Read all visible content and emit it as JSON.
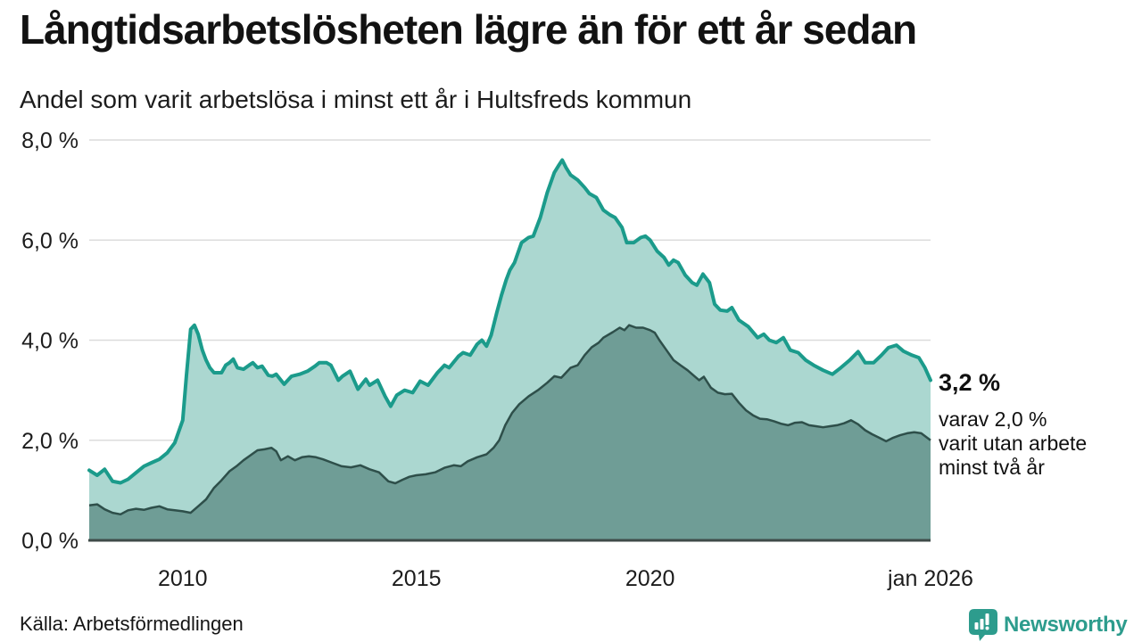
{
  "header": {
    "title": "Långtidsarbetslösheten lägre än för ett år sedan",
    "subtitle": "Andel som varit arbetslösa i minst ett år i Hultsfreds kommun"
  },
  "annotation": {
    "value": "3,2 %",
    "line1": "varav 2,0 %",
    "line2": "varit utan arbete",
    "line3": "minst två år"
  },
  "footer": {
    "source": "Källa: Arbetsförmedlingen",
    "brand": "Newsworthy"
  },
  "colors": {
    "total_line": "#1b9b8b",
    "total_fill": "#abd7d0",
    "two_line": "#2e4f4a",
    "two_fill": "#6f9d96",
    "grid": "#dcdcdc",
    "axis": "#3f4b49",
    "brand": "#2d9c8d"
  },
  "chart_data": {
    "type": "area",
    "title": "Långtidsarbetslösheten lägre än för ett år sedan",
    "subtitle": "Andel som varit arbetslösa i minst ett år i Hultsfreds kommun",
    "xlabel": "",
    "ylabel": "",
    "grid": true,
    "legend_position": "none",
    "x_axis": {
      "range": [
        2008,
        2026
      ],
      "ticks": [
        {
          "value": 2010,
          "label": "2010"
        },
        {
          "value": 2015,
          "label": "2015"
        },
        {
          "value": 2020,
          "label": "2020"
        },
        {
          "value": 2026,
          "label": "jan 2026"
        }
      ]
    },
    "y_axis": {
      "range": [
        0,
        8
      ],
      "ticks": [
        {
          "value": 0,
          "label": "0,0 %"
        },
        {
          "value": 2,
          "label": "2,0 %"
        },
        {
          "value": 4,
          "label": "4,0 %"
        },
        {
          "value": 6,
          "label": "6,0 %"
        },
        {
          "value": 8,
          "label": "8,0 %"
        }
      ]
    },
    "series": [
      {
        "key": "total",
        "name": "Arbetslösa minst ett år",
        "end_value": "3,2 %",
        "points": [
          [
            2008.0,
            1.4
          ],
          [
            2008.17,
            1.3
          ],
          [
            2008.33,
            1.42
          ],
          [
            2008.5,
            1.18
          ],
          [
            2008.67,
            1.15
          ],
          [
            2008.83,
            1.22
          ],
          [
            2009.0,
            1.35
          ],
          [
            2009.17,
            1.48
          ],
          [
            2009.33,
            1.55
          ],
          [
            2009.5,
            1.62
          ],
          [
            2009.67,
            1.75
          ],
          [
            2009.83,
            1.95
          ],
          [
            2010.0,
            2.4
          ],
          [
            2010.08,
            3.3
          ],
          [
            2010.17,
            4.22
          ],
          [
            2010.25,
            4.3
          ],
          [
            2010.33,
            4.12
          ],
          [
            2010.42,
            3.8
          ],
          [
            2010.5,
            3.6
          ],
          [
            2010.58,
            3.45
          ],
          [
            2010.67,
            3.35
          ],
          [
            2010.83,
            3.35
          ],
          [
            2010.92,
            3.5
          ],
          [
            2011.0,
            3.55
          ],
          [
            2011.08,
            3.62
          ],
          [
            2011.17,
            3.45
          ],
          [
            2011.3,
            3.42
          ],
          [
            2011.42,
            3.5
          ],
          [
            2011.5,
            3.55
          ],
          [
            2011.6,
            3.45
          ],
          [
            2011.7,
            3.48
          ],
          [
            2011.83,
            3.3
          ],
          [
            2011.92,
            3.28
          ],
          [
            2012.0,
            3.32
          ],
          [
            2012.17,
            3.12
          ],
          [
            2012.33,
            3.28
          ],
          [
            2012.5,
            3.32
          ],
          [
            2012.67,
            3.38
          ],
          [
            2012.83,
            3.48
          ],
          [
            2012.92,
            3.55
          ],
          [
            2013.08,
            3.55
          ],
          [
            2013.17,
            3.5
          ],
          [
            2013.33,
            3.2
          ],
          [
            2013.42,
            3.28
          ],
          [
            2013.58,
            3.38
          ],
          [
            2013.75,
            3.02
          ],
          [
            2013.92,
            3.22
          ],
          [
            2014.0,
            3.1
          ],
          [
            2014.17,
            3.2
          ],
          [
            2014.33,
            2.88
          ],
          [
            2014.45,
            2.68
          ],
          [
            2014.58,
            2.9
          ],
          [
            2014.75,
            3.0
          ],
          [
            2014.92,
            2.95
          ],
          [
            2015.08,
            3.18
          ],
          [
            2015.25,
            3.1
          ],
          [
            2015.45,
            3.35
          ],
          [
            2015.6,
            3.5
          ],
          [
            2015.7,
            3.45
          ],
          [
            2015.9,
            3.68
          ],
          [
            2016.0,
            3.75
          ],
          [
            2016.15,
            3.7
          ],
          [
            2016.3,
            3.92
          ],
          [
            2016.4,
            4.0
          ],
          [
            2016.5,
            3.88
          ],
          [
            2016.6,
            4.1
          ],
          [
            2016.72,
            4.55
          ],
          [
            2016.82,
            4.9
          ],
          [
            2016.92,
            5.2
          ],
          [
            2017.0,
            5.4
          ],
          [
            2017.1,
            5.55
          ],
          [
            2017.25,
            5.95
          ],
          [
            2017.4,
            6.05
          ],
          [
            2017.5,
            6.08
          ],
          [
            2017.65,
            6.45
          ],
          [
            2017.8,
            6.95
          ],
          [
            2017.95,
            7.35
          ],
          [
            2018.05,
            7.5
          ],
          [
            2018.12,
            7.6
          ],
          [
            2018.2,
            7.45
          ],
          [
            2018.3,
            7.3
          ],
          [
            2018.45,
            7.2
          ],
          [
            2018.6,
            7.05
          ],
          [
            2018.7,
            6.93
          ],
          [
            2018.85,
            6.85
          ],
          [
            2019.0,
            6.6
          ],
          [
            2019.15,
            6.5
          ],
          [
            2019.25,
            6.45
          ],
          [
            2019.4,
            6.25
          ],
          [
            2019.5,
            5.95
          ],
          [
            2019.65,
            5.95
          ],
          [
            2019.8,
            6.05
          ],
          [
            2019.9,
            6.08
          ],
          [
            2020.0,
            6.0
          ],
          [
            2020.15,
            5.78
          ],
          [
            2020.3,
            5.65
          ],
          [
            2020.4,
            5.5
          ],
          [
            2020.5,
            5.6
          ],
          [
            2020.6,
            5.55
          ],
          [
            2020.75,
            5.3
          ],
          [
            2020.9,
            5.15
          ],
          [
            2021.0,
            5.1
          ],
          [
            2021.13,
            5.32
          ],
          [
            2021.27,
            5.15
          ],
          [
            2021.38,
            4.72
          ],
          [
            2021.5,
            4.6
          ],
          [
            2021.65,
            4.58
          ],
          [
            2021.75,
            4.65
          ],
          [
            2021.9,
            4.4
          ],
          [
            2022.1,
            4.27
          ],
          [
            2022.3,
            4.05
          ],
          [
            2022.43,
            4.12
          ],
          [
            2022.55,
            4.0
          ],
          [
            2022.7,
            3.95
          ],
          [
            2022.85,
            4.05
          ],
          [
            2023.0,
            3.8
          ],
          [
            2023.17,
            3.75
          ],
          [
            2023.33,
            3.6
          ],
          [
            2023.5,
            3.5
          ],
          [
            2023.7,
            3.4
          ],
          [
            2023.9,
            3.32
          ],
          [
            2024.08,
            3.45
          ],
          [
            2024.27,
            3.6
          ],
          [
            2024.45,
            3.77
          ],
          [
            2024.6,
            3.55
          ],
          [
            2024.78,
            3.55
          ],
          [
            2024.95,
            3.7
          ],
          [
            2025.1,
            3.85
          ],
          [
            2025.27,
            3.9
          ],
          [
            2025.42,
            3.78
          ],
          [
            2025.6,
            3.7
          ],
          [
            2025.75,
            3.65
          ],
          [
            2025.88,
            3.45
          ],
          [
            2026.0,
            3.2
          ]
        ]
      },
      {
        "key": "twoyear",
        "name": "Varit utan arbete minst två år",
        "end_value": "2,0 %",
        "points": [
          [
            2008.0,
            0.7
          ],
          [
            2008.17,
            0.72
          ],
          [
            2008.33,
            0.62
          ],
          [
            2008.5,
            0.55
          ],
          [
            2008.67,
            0.52
          ],
          [
            2008.83,
            0.6
          ],
          [
            2009.0,
            0.63
          ],
          [
            2009.17,
            0.61
          ],
          [
            2009.33,
            0.65
          ],
          [
            2009.5,
            0.68
          ],
          [
            2009.67,
            0.62
          ],
          [
            2009.83,
            0.6
          ],
          [
            2010.0,
            0.58
          ],
          [
            2010.17,
            0.55
          ],
          [
            2010.33,
            0.68
          ],
          [
            2010.5,
            0.82
          ],
          [
            2010.67,
            1.05
          ],
          [
            2010.83,
            1.2
          ],
          [
            2011.0,
            1.38
          ],
          [
            2011.15,
            1.48
          ],
          [
            2011.3,
            1.6
          ],
          [
            2011.45,
            1.7
          ],
          [
            2011.6,
            1.8
          ],
          [
            2011.75,
            1.82
          ],
          [
            2011.9,
            1.85
          ],
          [
            2012.0,
            1.78
          ],
          [
            2012.1,
            1.6
          ],
          [
            2012.25,
            1.68
          ],
          [
            2012.4,
            1.6
          ],
          [
            2012.55,
            1.66
          ],
          [
            2012.7,
            1.68
          ],
          [
            2012.85,
            1.66
          ],
          [
            2013.0,
            1.62
          ],
          [
            2013.2,
            1.55
          ],
          [
            2013.4,
            1.48
          ],
          [
            2013.6,
            1.46
          ],
          [
            2013.8,
            1.5
          ],
          [
            2014.0,
            1.42
          ],
          [
            2014.2,
            1.36
          ],
          [
            2014.4,
            1.18
          ],
          [
            2014.55,
            1.14
          ],
          [
            2014.7,
            1.21
          ],
          [
            2014.85,
            1.27
          ],
          [
            2015.0,
            1.3
          ],
          [
            2015.2,
            1.32
          ],
          [
            2015.4,
            1.36
          ],
          [
            2015.6,
            1.45
          ],
          [
            2015.8,
            1.5
          ],
          [
            2015.95,
            1.48
          ],
          [
            2016.1,
            1.58
          ],
          [
            2016.3,
            1.66
          ],
          [
            2016.5,
            1.72
          ],
          [
            2016.65,
            1.85
          ],
          [
            2016.77,
            2.0
          ],
          [
            2016.9,
            2.3
          ],
          [
            2017.05,
            2.55
          ],
          [
            2017.2,
            2.72
          ],
          [
            2017.4,
            2.88
          ],
          [
            2017.6,
            3.0
          ],
          [
            2017.8,
            3.15
          ],
          [
            2017.95,
            3.28
          ],
          [
            2018.1,
            3.25
          ],
          [
            2018.3,
            3.45
          ],
          [
            2018.45,
            3.5
          ],
          [
            2018.6,
            3.7
          ],
          [
            2018.75,
            3.86
          ],
          [
            2018.9,
            3.95
          ],
          [
            2019.0,
            4.05
          ],
          [
            2019.2,
            4.16
          ],
          [
            2019.35,
            4.25
          ],
          [
            2019.45,
            4.2
          ],
          [
            2019.55,
            4.3
          ],
          [
            2019.7,
            4.25
          ],
          [
            2019.85,
            4.25
          ],
          [
            2020.0,
            4.2
          ],
          [
            2020.1,
            4.15
          ],
          [
            2020.2,
            4.0
          ],
          [
            2020.35,
            3.8
          ],
          [
            2020.5,
            3.6
          ],
          [
            2020.65,
            3.5
          ],
          [
            2020.8,
            3.4
          ],
          [
            2020.95,
            3.28
          ],
          [
            2021.05,
            3.2
          ],
          [
            2021.15,
            3.27
          ],
          [
            2021.3,
            3.05
          ],
          [
            2021.45,
            2.95
          ],
          [
            2021.6,
            2.92
          ],
          [
            2021.75,
            2.93
          ],
          [
            2021.9,
            2.75
          ],
          [
            2022.05,
            2.6
          ],
          [
            2022.2,
            2.5
          ],
          [
            2022.35,
            2.43
          ],
          [
            2022.5,
            2.42
          ],
          [
            2022.65,
            2.38
          ],
          [
            2022.8,
            2.33
          ],
          [
            2022.95,
            2.3
          ],
          [
            2023.1,
            2.35
          ],
          [
            2023.25,
            2.36
          ],
          [
            2023.4,
            2.3
          ],
          [
            2023.55,
            2.28
          ],
          [
            2023.7,
            2.26
          ],
          [
            2023.85,
            2.28
          ],
          [
            2024.0,
            2.3
          ],
          [
            2024.15,
            2.34
          ],
          [
            2024.3,
            2.4
          ],
          [
            2024.45,
            2.32
          ],
          [
            2024.6,
            2.2
          ],
          [
            2024.75,
            2.12
          ],
          [
            2024.9,
            2.05
          ],
          [
            2025.05,
            1.98
          ],
          [
            2025.2,
            2.05
          ],
          [
            2025.35,
            2.1
          ],
          [
            2025.5,
            2.14
          ],
          [
            2025.65,
            2.16
          ],
          [
            2025.8,
            2.14
          ],
          [
            2026.0,
            2.0
          ]
        ]
      }
    ]
  }
}
